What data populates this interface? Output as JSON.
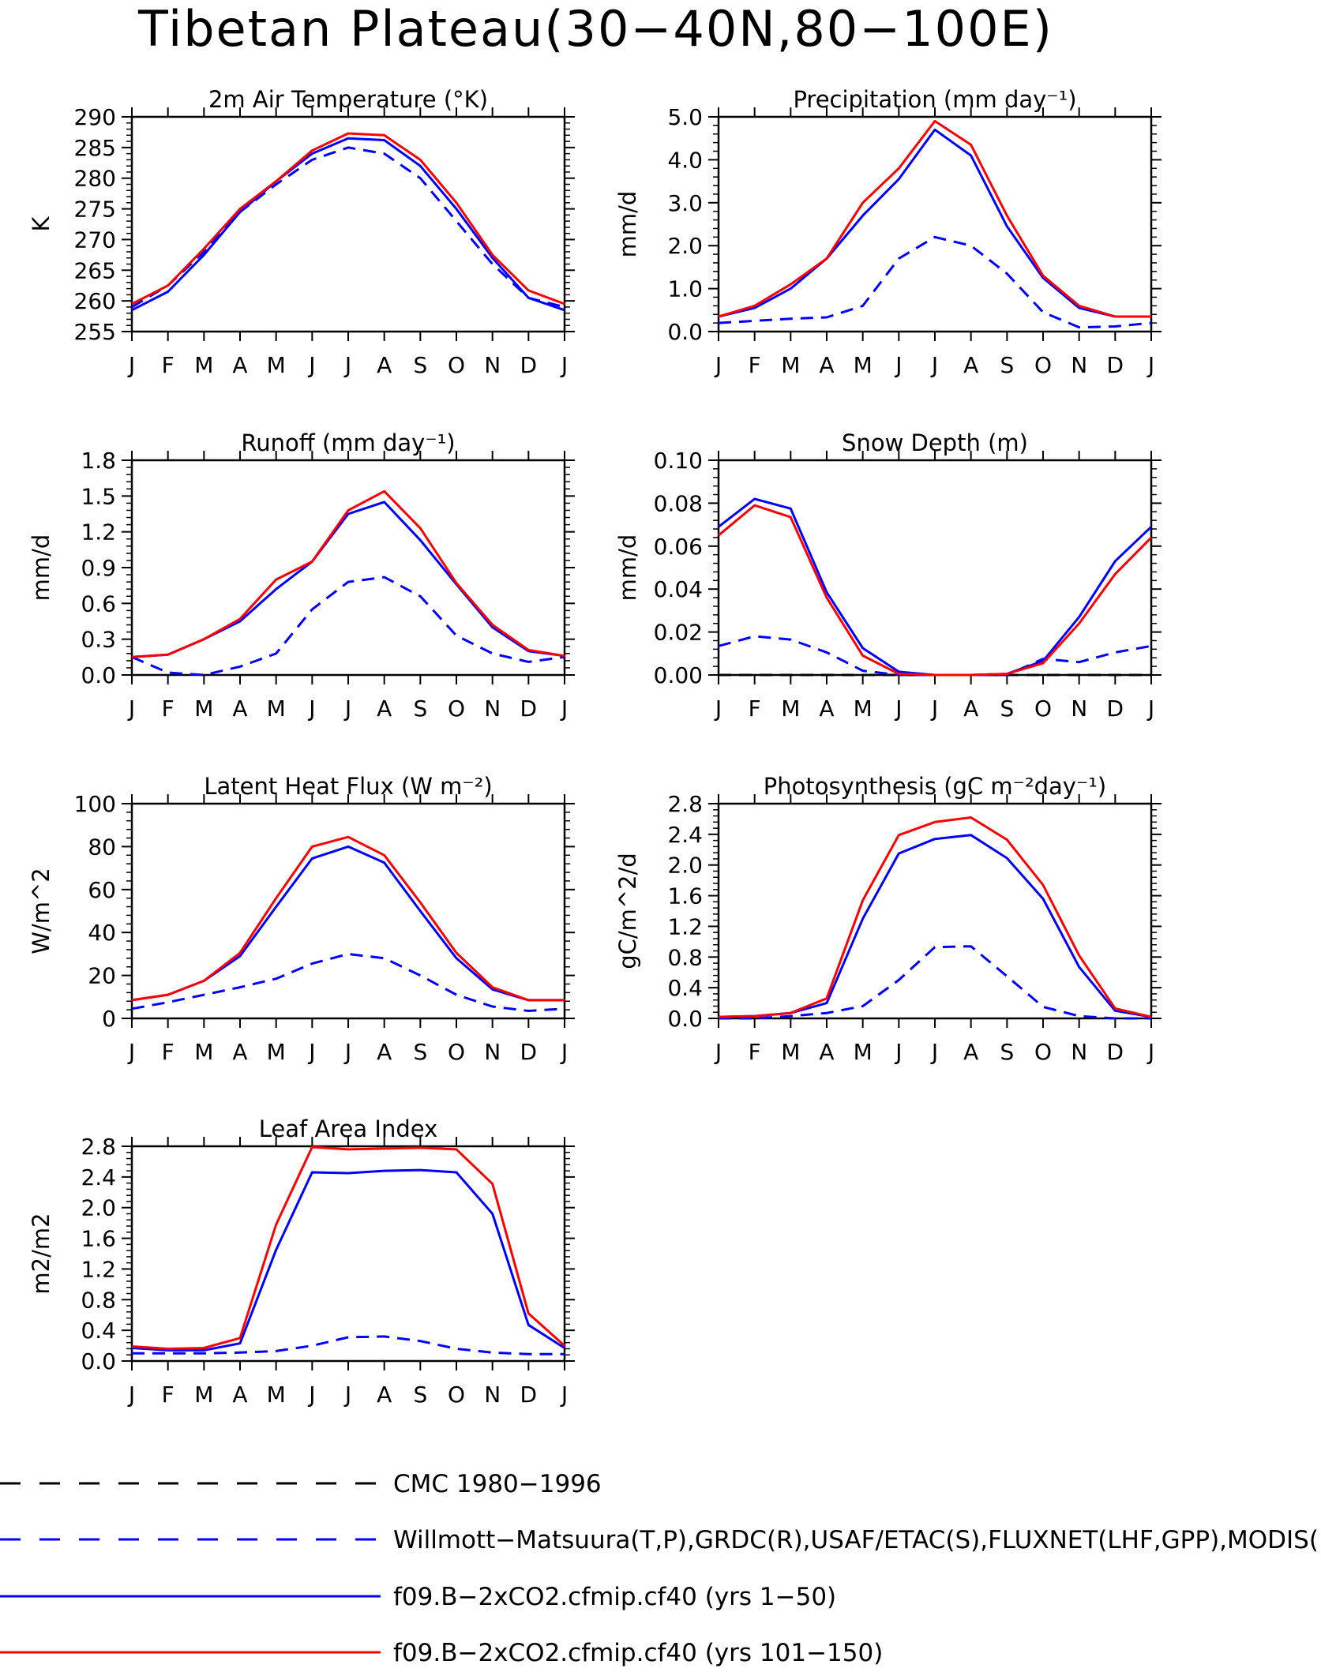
{
  "title": "Tibetan Plateau(30−40N,80−100E)",
  "legend": [
    {
      "label": "CMC 1980−1996",
      "color": "#000000",
      "dash": "dashed"
    },
    {
      "label": "Willmott−Matsuura(T,P),GRDC(R),USAF/ETAC(S),FLUXNET(LHF,GPP),MODIS(L",
      "color": "#0000ff",
      "dash": "dashed"
    },
    {
      "label": "f09.B−2xCO2.cfmip.cf40 (yrs 1−50)",
      "color": "#0000ff",
      "dash": "solid"
    },
    {
      "label": "f09.B−2xCO2.cfmip.cf40 (yrs 101−150)",
      "color": "#ff0000",
      "dash": "solid"
    }
  ],
  "chart_data": [
    {
      "type": "line",
      "title": "2m Air Temperature (°K)",
      "ylabel": "K",
      "categories": [
        "J",
        "F",
        "M",
        "A",
        "M",
        "J",
        "J",
        "A",
        "S",
        "O",
        "N",
        "D",
        "J"
      ],
      "ylim": [
        255,
        290
      ],
      "yticks": [
        255,
        260,
        265,
        270,
        275,
        280,
        285,
        290
      ],
      "ytick_labels": [
        "255",
        "260",
        "265",
        "270",
        "275",
        "280",
        "285",
        "290"
      ],
      "series": [
        {
          "legend_index": 1,
          "values": [
            259.0,
            262.5,
            268.0,
            274.5,
            279.0,
            283.0,
            285.0,
            284.0,
            280.0,
            273.0,
            266.0,
            260.5,
            259.0
          ]
        },
        {
          "legend_index": 2,
          "values": [
            258.5,
            261.5,
            267.5,
            274.5,
            279.5,
            284.0,
            286.5,
            286.2,
            282.0,
            275.0,
            267.0,
            260.5,
            258.5
          ]
        },
        {
          "legend_index": 3,
          "values": [
            259.5,
            262.5,
            268.5,
            275.0,
            279.5,
            284.5,
            287.3,
            287.0,
            283.0,
            276.0,
            267.5,
            261.7,
            259.5
          ]
        }
      ]
    },
    {
      "type": "line",
      "title": "Precipitation (mm day⁻¹)",
      "ylabel": "mm/d",
      "categories": [
        "J",
        "F",
        "M",
        "A",
        "M",
        "J",
        "J",
        "A",
        "S",
        "O",
        "N",
        "D",
        "J"
      ],
      "ylim": [
        0,
        5
      ],
      "yticks": [
        0,
        1,
        2,
        3,
        4,
        5
      ],
      "ytick_labels": [
        "0.0",
        "1.0",
        "2.0",
        "3.0",
        "4.0",
        "5.0"
      ],
      "series": [
        {
          "legend_index": 1,
          "values": [
            0.2,
            0.25,
            0.3,
            0.33,
            0.6,
            1.7,
            2.2,
            2.0,
            1.35,
            0.45,
            0.1,
            0.12,
            0.2
          ]
        },
        {
          "legend_index": 2,
          "values": [
            0.35,
            0.55,
            1.0,
            1.7,
            2.7,
            3.55,
            4.7,
            4.1,
            2.45,
            1.25,
            0.55,
            0.35,
            0.35
          ]
        },
        {
          "legend_index": 3,
          "values": [
            0.35,
            0.6,
            1.1,
            1.7,
            3.0,
            3.8,
            4.9,
            4.35,
            2.7,
            1.3,
            0.6,
            0.35,
            0.35
          ]
        }
      ]
    },
    {
      "type": "line",
      "title": "Runoff (mm day⁻¹)",
      "ylabel": "mm/d",
      "categories": [
        "J",
        "F",
        "M",
        "A",
        "M",
        "J",
        "J",
        "A",
        "S",
        "O",
        "N",
        "D",
        "J"
      ],
      "ylim": [
        0,
        1.8
      ],
      "yticks": [
        0,
        0.3,
        0.6,
        0.9,
        1.2,
        1.5,
        1.8
      ],
      "ytick_labels": [
        "0.0",
        "0.3",
        "0.6",
        "0.9",
        "1.2",
        "1.5",
        "1.8"
      ],
      "series": [
        {
          "legend_index": 1,
          "values": [
            0.15,
            0.02,
            0.0,
            0.07,
            0.18,
            0.55,
            0.78,
            0.82,
            0.66,
            0.33,
            0.18,
            0.11,
            0.15
          ]
        },
        {
          "legend_index": 2,
          "values": [
            0.15,
            0.17,
            0.3,
            0.45,
            0.72,
            0.95,
            1.35,
            1.45,
            1.13,
            0.76,
            0.4,
            0.2,
            0.16
          ]
        },
        {
          "legend_index": 3,
          "values": [
            0.15,
            0.17,
            0.3,
            0.47,
            0.8,
            0.95,
            1.38,
            1.54,
            1.23,
            0.77,
            0.42,
            0.21,
            0.16
          ]
        }
      ]
    },
    {
      "type": "line",
      "title": "Snow Depth (m)",
      "ylabel": "mm/d",
      "categories": [
        "J",
        "F",
        "M",
        "A",
        "M",
        "J",
        "J",
        "A",
        "S",
        "O",
        "N",
        "D",
        "J"
      ],
      "ylim": [
        0,
        0.1
      ],
      "yticks": [
        0,
        0.02,
        0.04,
        0.06,
        0.08,
        0.1
      ],
      "ytick_labels": [
        "0.00",
        "0.02",
        "0.04",
        "0.06",
        "0.08",
        "0.10"
      ],
      "series": [
        {
          "legend_index": 0,
          "values": [
            0,
            0,
            0,
            0,
            0,
            0,
            0,
            0,
            0,
            0,
            0,
            0,
            0
          ]
        },
        {
          "legend_index": 1,
          "values": [
            0.0135,
            0.018,
            0.0165,
            0.0105,
            0.002,
            0.0,
            0.0,
            0.0,
            0.0,
            0.0075,
            0.006,
            0.0105,
            0.0135
          ]
        },
        {
          "legend_index": 2,
          "values": [
            0.069,
            0.082,
            0.0775,
            0.0385,
            0.0125,
            0.0015,
            0.0,
            0.0,
            0.0005,
            0.0065,
            0.027,
            0.053,
            0.069
          ]
        },
        {
          "legend_index": 3,
          "values": [
            0.065,
            0.079,
            0.0735,
            0.036,
            0.009,
            0.0005,
            0.0,
            0.0,
            0.0005,
            0.0055,
            0.024,
            0.047,
            0.064
          ]
        }
      ]
    },
    {
      "type": "line",
      "title": "Latent Heat Flux (W m⁻²)",
      "ylabel": "W/m^2",
      "categories": [
        "J",
        "F",
        "M",
        "A",
        "M",
        "J",
        "J",
        "A",
        "S",
        "O",
        "N",
        "D",
        "J"
      ],
      "ylim": [
        0,
        100
      ],
      "yticks": [
        0,
        20,
        40,
        60,
        80,
        100
      ],
      "ytick_labels": [
        "0",
        "20",
        "40",
        "60",
        "80",
        "100"
      ],
      "series": [
        {
          "legend_index": 1,
          "values": [
            4.5,
            7.5,
            11,
            14.5,
            18.5,
            25.5,
            30,
            28,
            20,
            11,
            5.5,
            3.5,
            4.5
          ]
        },
        {
          "legend_index": 2,
          "values": [
            8.5,
            11,
            17.5,
            29,
            52,
            74.5,
            80,
            72.5,
            50,
            28,
            13.5,
            8.5,
            8.5
          ]
        },
        {
          "legend_index": 3,
          "values": [
            8.5,
            11,
            17.5,
            30.5,
            56,
            80,
            84.5,
            76,
            54,
            30.5,
            14.5,
            8.5,
            8.5
          ]
        }
      ]
    },
    {
      "type": "line",
      "title": "Photosynthesis (gC m⁻²day⁻¹)",
      "ylabel": "gC/m^2/d",
      "categories": [
        "J",
        "F",
        "M",
        "A",
        "M",
        "J",
        "J",
        "A",
        "S",
        "O",
        "N",
        "D",
        "J"
      ],
      "ylim": [
        0,
        2.8
      ],
      "yticks": [
        0,
        0.4,
        0.8,
        1.2,
        1.6,
        2.0,
        2.4,
        2.8
      ],
      "ytick_labels": [
        "0.0",
        "0.4",
        "0.8",
        "1.2",
        "1.6",
        "2.0",
        "2.4",
        "2.8"
      ],
      "series": [
        {
          "legend_index": 1,
          "values": [
            0.0,
            0.0,
            0.03,
            0.07,
            0.16,
            0.5,
            0.93,
            0.94,
            0.55,
            0.15,
            0.03,
            0.0,
            0.0
          ]
        },
        {
          "legend_index": 2,
          "values": [
            0.02,
            0.03,
            0.07,
            0.2,
            1.3,
            2.15,
            2.34,
            2.39,
            2.09,
            1.56,
            0.67,
            0.1,
            0.02
          ]
        },
        {
          "legend_index": 3,
          "values": [
            0.02,
            0.03,
            0.07,
            0.26,
            1.54,
            2.39,
            2.56,
            2.62,
            2.33,
            1.74,
            0.82,
            0.13,
            0.02
          ]
        }
      ]
    },
    {
      "type": "line",
      "title": "Leaf Area Index",
      "ylabel": "m2/m2",
      "categories": [
        "J",
        "F",
        "M",
        "A",
        "M",
        "J",
        "J",
        "A",
        "S",
        "O",
        "N",
        "D",
        "J"
      ],
      "ylim": [
        0,
        2.8
      ],
      "yticks": [
        0,
        0.4,
        0.8,
        1.2,
        1.6,
        2.0,
        2.4,
        2.8
      ],
      "ytick_labels": [
        "0.0",
        "0.4",
        "0.8",
        "1.2",
        "1.6",
        "2.0",
        "2.4",
        "2.8"
      ],
      "series": [
        {
          "legend_index": 1,
          "values": [
            0.1,
            0.1,
            0.1,
            0.11,
            0.13,
            0.2,
            0.31,
            0.32,
            0.26,
            0.16,
            0.11,
            0.09,
            0.09
          ]
        },
        {
          "legend_index": 2,
          "values": [
            0.17,
            0.14,
            0.14,
            0.23,
            1.45,
            2.46,
            2.45,
            2.48,
            2.49,
            2.46,
            1.92,
            0.47,
            0.17
          ]
        },
        {
          "legend_index": 3,
          "values": [
            0.19,
            0.16,
            0.17,
            0.3,
            1.78,
            2.79,
            2.76,
            2.77,
            2.78,
            2.76,
            2.31,
            0.62,
            0.2
          ]
        }
      ]
    }
  ]
}
